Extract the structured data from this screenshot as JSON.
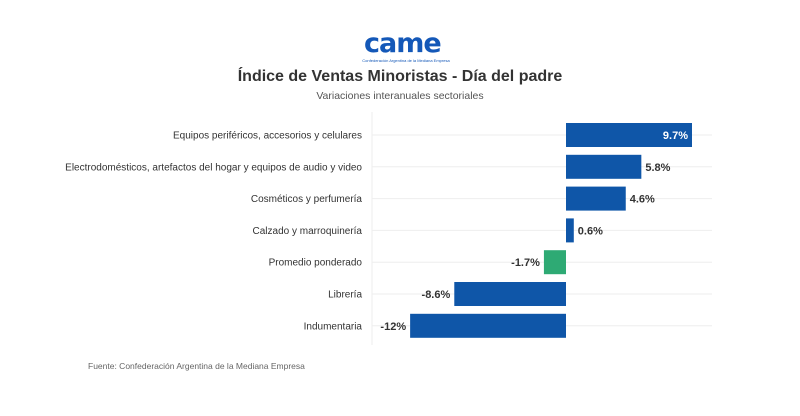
{
  "logo": {
    "name": "came",
    "text": "came",
    "subtitle": "Confederación Argentina de la Mediana Empresa",
    "color": "#1458b8"
  },
  "header": {
    "title": "Índice de Ventas Minoristas - Día del padre",
    "subtitle": "Variaciones interanuales sectoriales"
  },
  "footer": {
    "source": "Fuente: Confederación Argentina de la Mediana Empresa"
  },
  "chart_data": {
    "type": "bar",
    "orientation": "horizontal",
    "title": "Índice de Ventas Minoristas - Día del padre",
    "subtitle": "Variaciones interanuales sectoriales",
    "xlabel": "",
    "ylabel": "",
    "xlim": [
      -12,
      9.7
    ],
    "grid": true,
    "legend": "none",
    "unit": "%",
    "categories": [
      "Equipos periféricos, accesorios y celulares",
      "Electrodomésticos, artefactos del hogar y equipos de audio y video",
      "Cosméticos y perfumería",
      "Calzado y marroquinería",
      "Promedio ponderado",
      "Librería",
      "Indumentaria"
    ],
    "values": [
      9.7,
      5.8,
      4.6,
      0.6,
      -1.7,
      -8.6,
      -12
    ],
    "data_labels": [
      "9.7%",
      "5.8%",
      "4.6%",
      "0.6%",
      "-1.7%",
      "-8.6%",
      "-12%"
    ],
    "colors": [
      "#0f56a8",
      "#0f56a8",
      "#0f56a8",
      "#0f56a8",
      "#2eaa74",
      "#0f56a8",
      "#0f56a8"
    ],
    "highlight_category": "Promedio ponderado"
  }
}
